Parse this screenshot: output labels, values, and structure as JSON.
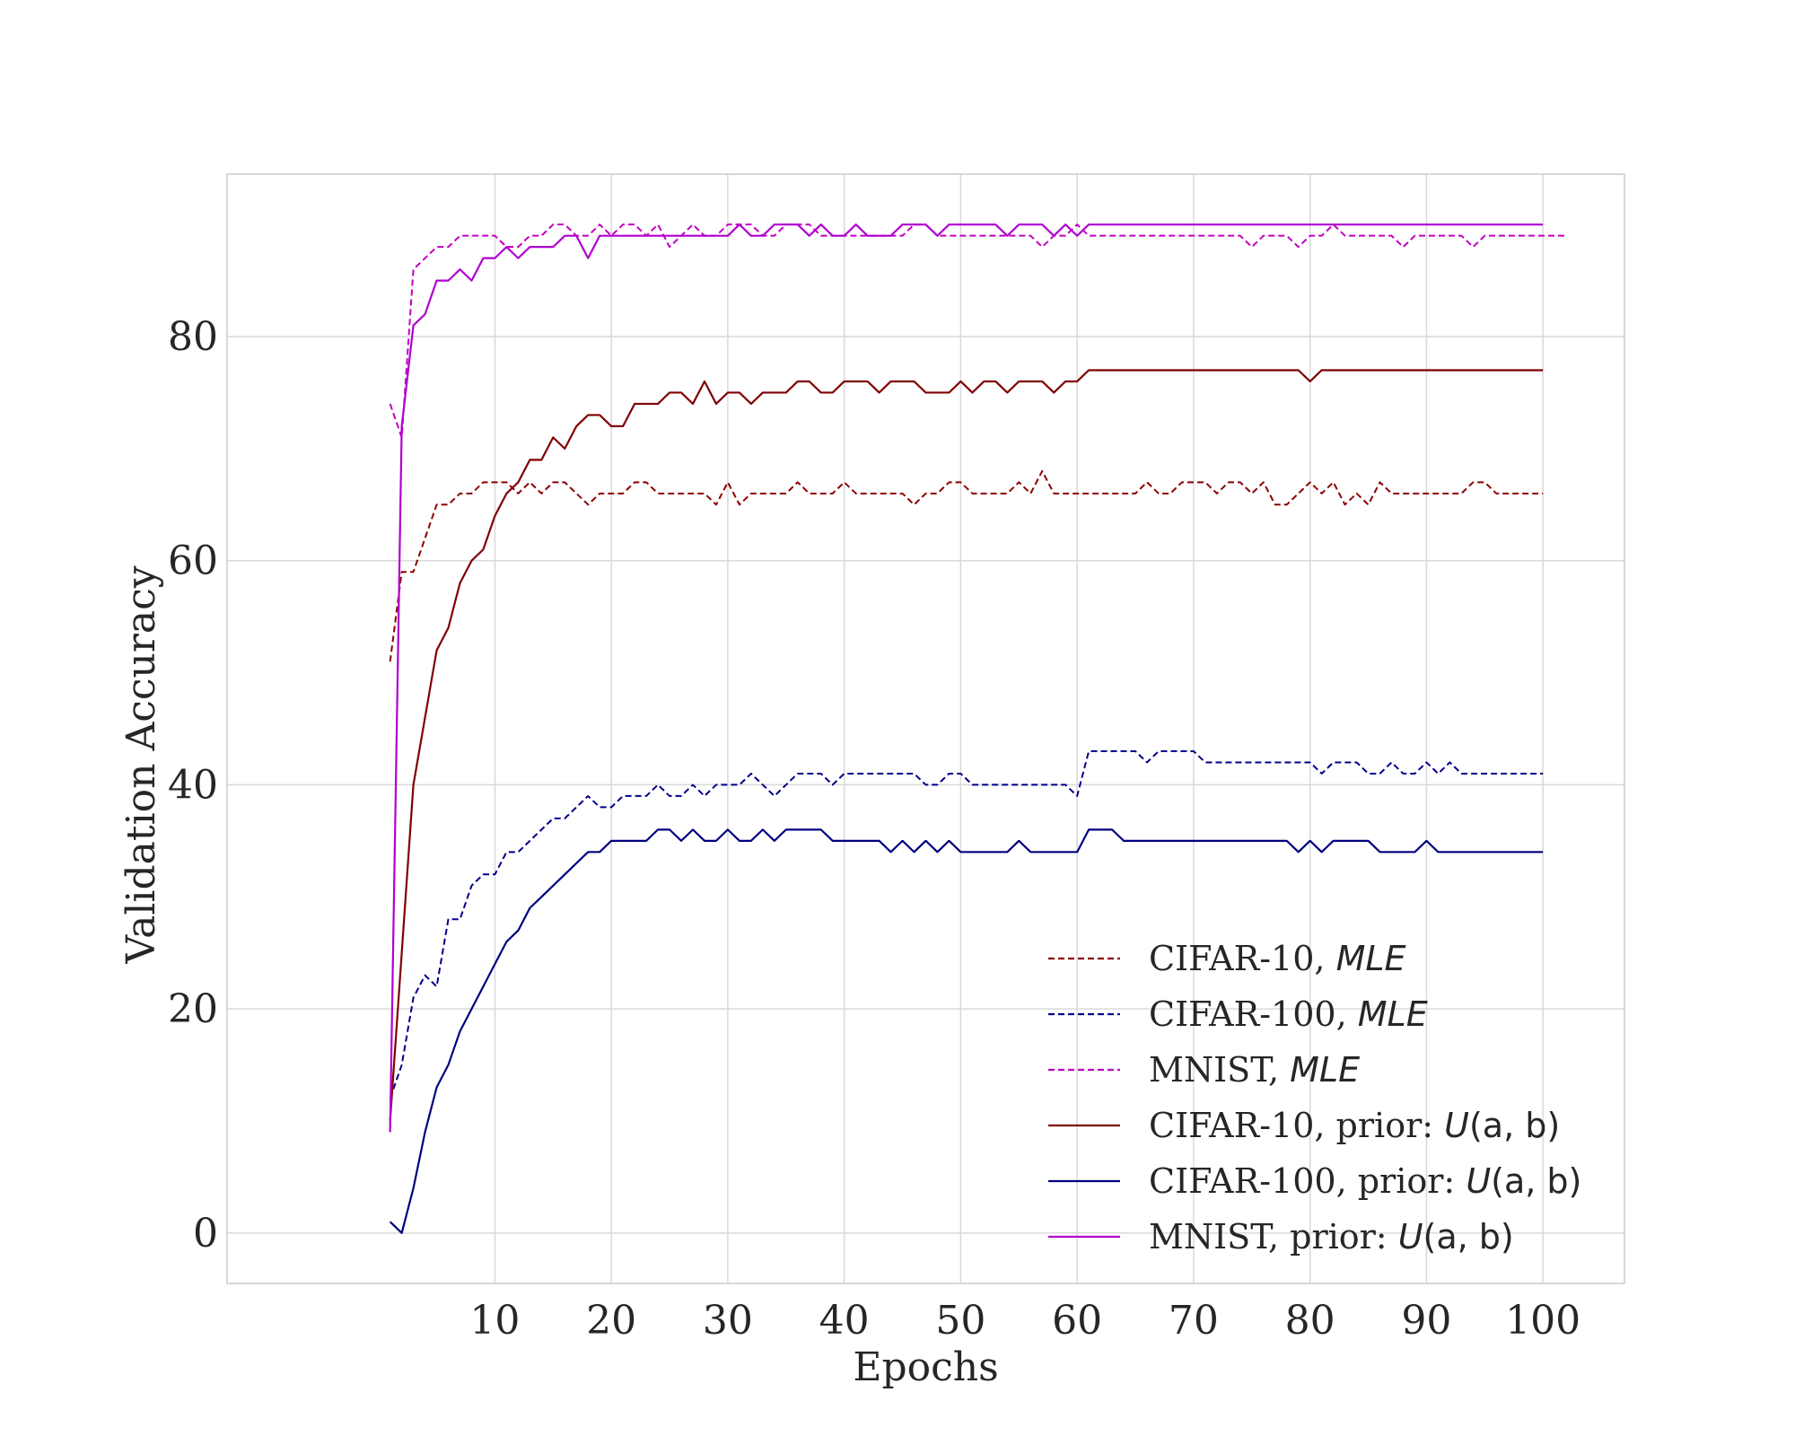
{
  "chart_data": {
    "type": "line",
    "xlabel": "Epochs",
    "ylabel": "Validation Accuracy",
    "xlim": [
      -13,
      107
    ],
    "ylim": [
      -4.5,
      94.5
    ],
    "xticks": [
      10,
      20,
      30,
      40,
      50,
      60,
      70,
      80,
      90,
      100
    ],
    "yticks": [
      0,
      20,
      40,
      60,
      80
    ],
    "grid": true,
    "legend_position": "lower-right",
    "series": [
      {
        "name_parts": [
          "CIFAR-10, ",
          "MLE",
          ""
        ],
        "color": "#8b0000",
        "dashed": true,
        "x_start": 1,
        "values": [
          51,
          59,
          59,
          62,
          65,
          65,
          66,
          66,
          67,
          67,
          67,
          66,
          67,
          66,
          67,
          67,
          66,
          65,
          66,
          66,
          66,
          67,
          67,
          66,
          66,
          66,
          66,
          66,
          65,
          67,
          65,
          66,
          66,
          66,
          66,
          67,
          66,
          66,
          66,
          67,
          66,
          66,
          66,
          66,
          66,
          65,
          66,
          66,
          67,
          67,
          66,
          66,
          66,
          66,
          67,
          66,
          68,
          66,
          66,
          66,
          66,
          66,
          66,
          66,
          66,
          67,
          66,
          66,
          67,
          67,
          67,
          66,
          67,
          67,
          66,
          67,
          65,
          65,
          66,
          67,
          66,
          67,
          65,
          66,
          65,
          67,
          66,
          66,
          66,
          66,
          66,
          66,
          66,
          67,
          67,
          66,
          66,
          66,
          66,
          66
        ]
      },
      {
        "name_parts": [
          "CIFAR-100, ",
          "MLE",
          ""
        ],
        "color": "#00008b",
        "dashed": true,
        "x_start": 1,
        "values": [
          12,
          15,
          21,
          23,
          22,
          28,
          28,
          31,
          32,
          32,
          34,
          34,
          35,
          36,
          37,
          37,
          38,
          39,
          38,
          38,
          39,
          39,
          39,
          40,
          39,
          39,
          40,
          39,
          40,
          40,
          40,
          41,
          40,
          39,
          40,
          41,
          41,
          41,
          40,
          41,
          41,
          41,
          41,
          41,
          41,
          41,
          40,
          40,
          41,
          41,
          40,
          40,
          40,
          40,
          40,
          40,
          40,
          40,
          40,
          39,
          43,
          43,
          43,
          43,
          43,
          42,
          43,
          43,
          43,
          43,
          42,
          42,
          42,
          42,
          42,
          42,
          42,
          42,
          42,
          42,
          41,
          42,
          42,
          42,
          41,
          41,
          42,
          41,
          41,
          42,
          41,
          42,
          41,
          41,
          41,
          41,
          41,
          41,
          41,
          41
        ]
      },
      {
        "name_parts": [
          "MNIST, ",
          "MLE",
          ""
        ],
        "color": "#c000c0",
        "dashed": true,
        "x_start": 1,
        "values": [
          74,
          71,
          86,
          87,
          88,
          88,
          89,
          89,
          89,
          89,
          88,
          88,
          89,
          89,
          90,
          90,
          89,
          89,
          90,
          89,
          90,
          90,
          89,
          90,
          88,
          89,
          90,
          89,
          89,
          90,
          90,
          90,
          89,
          89,
          90,
          90,
          90,
          89,
          89,
          89,
          89,
          89,
          89,
          89,
          89,
          90,
          90,
          89,
          89,
          89,
          89,
          89,
          89,
          89,
          89,
          89,
          88,
          89,
          89,
          90,
          89,
          89,
          89,
          89,
          89,
          89,
          89,
          89,
          89,
          89,
          89,
          89,
          89,
          89,
          88,
          89,
          89,
          89,
          88,
          89,
          89,
          90,
          89,
          89,
          89,
          89,
          89,
          88,
          89,
          89,
          89,
          89,
          89,
          88,
          89,
          89,
          89,
          89,
          89,
          89,
          89,
          89
        ]
      },
      {
        "name_parts": [
          "CIFAR-10, prior: ",
          "U",
          "(a, b)"
        ],
        "color": "#800000",
        "dashed": false,
        "x_start": 1,
        "values": [
          10,
          25,
          40,
          46,
          52,
          54,
          58,
          60,
          61,
          64,
          66,
          67,
          69,
          69,
          71,
          70,
          72,
          73,
          73,
          72,
          72,
          74,
          74,
          74,
          75,
          75,
          74,
          76,
          74,
          75,
          75,
          74,
          75,
          75,
          75,
          76,
          76,
          75,
          75,
          76,
          76,
          76,
          75,
          76,
          76,
          76,
          75,
          75,
          75,
          76,
          75,
          76,
          76,
          75,
          76,
          76,
          76,
          75,
          76,
          76,
          77,
          77,
          77,
          77,
          77,
          77,
          77,
          77,
          77,
          77,
          77,
          77,
          77,
          77,
          77,
          77,
          77,
          77,
          77,
          76,
          77,
          77,
          77,
          77,
          77,
          77,
          77,
          77,
          77,
          77,
          77,
          77,
          77,
          77,
          77,
          77,
          77,
          77,
          77,
          77
        ]
      },
      {
        "name_parts": [
          "CIFAR-100, prior: ",
          "U",
          "(a, b)"
        ],
        "color": "#000080",
        "dashed": false,
        "x_start": 1,
        "values": [
          1,
          0,
          4,
          9,
          13,
          15,
          18,
          20,
          22,
          24,
          26,
          27,
          29,
          30,
          31,
          32,
          33,
          34,
          34,
          35,
          35,
          35,
          35,
          36,
          36,
          35,
          36,
          35,
          35,
          36,
          35,
          35,
          36,
          35,
          36,
          36,
          36,
          36,
          35,
          35,
          35,
          35,
          35,
          34,
          35,
          34,
          35,
          34,
          35,
          34,
          34,
          34,
          34,
          34,
          35,
          34,
          34,
          34,
          34,
          34,
          36,
          36,
          36,
          35,
          35,
          35,
          35,
          35,
          35,
          35,
          35,
          35,
          35,
          35,
          35,
          35,
          35,
          35,
          34,
          35,
          34,
          35,
          35,
          35,
          35,
          34,
          34,
          34,
          34,
          35,
          34,
          34,
          34,
          34,
          34,
          34,
          34,
          34,
          34,
          34
        ]
      },
      {
        "name_parts": [
          "MNIST, prior: ",
          "U",
          "(a, b)"
        ],
        "color": "#b000d0",
        "dashed": false,
        "x_start": 1,
        "values": [
          9,
          72,
          81,
          82,
          85,
          85,
          86,
          85,
          87,
          87,
          88,
          87,
          88,
          88,
          88,
          89,
          89,
          87,
          89,
          89,
          89,
          89,
          89,
          89,
          89,
          89,
          89,
          89,
          89,
          89,
          90,
          89,
          89,
          90,
          90,
          90,
          89,
          90,
          89,
          89,
          90,
          89,
          89,
          89,
          90,
          90,
          90,
          89,
          90,
          90,
          90,
          90,
          90,
          89,
          90,
          90,
          90,
          89,
          90,
          89,
          90,
          90,
          90,
          90,
          90,
          90,
          90,
          90,
          90,
          90,
          90,
          90,
          90,
          90,
          90,
          90,
          90,
          90,
          90,
          90,
          90,
          90,
          90,
          90,
          90,
          90,
          90,
          90,
          90,
          90,
          90,
          90,
          90,
          90,
          90,
          90,
          90,
          90,
          90,
          90
        ]
      }
    ]
  }
}
